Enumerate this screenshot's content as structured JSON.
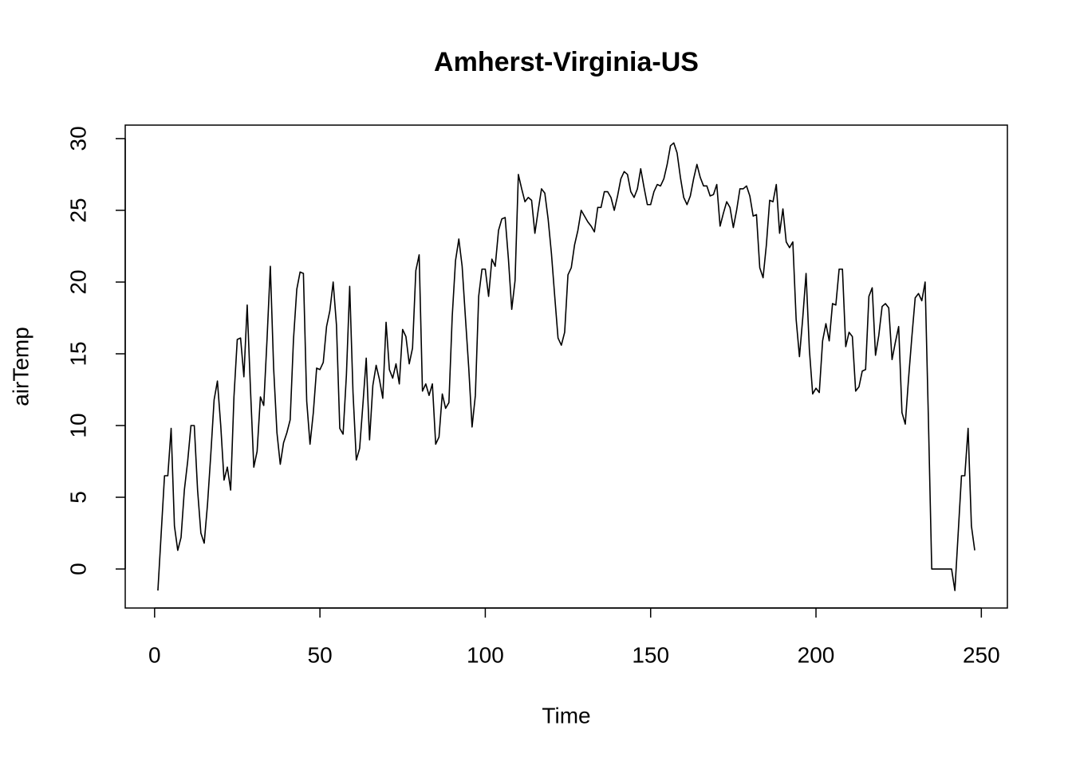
{
  "chart_data": {
    "type": "line",
    "title": "Amherst-Virginia-US",
    "x_label": "Time",
    "y_label": "airTemp",
    "x": [
      1,
      2,
      3,
      4,
      5,
      6,
      7,
      8,
      9,
      10,
      11,
      12,
      13,
      14,
      15,
      16,
      17,
      18,
      19,
      20,
      21,
      22,
      23,
      24,
      25,
      26,
      27,
      28,
      29,
      30,
      31,
      32,
      33,
      34,
      35,
      36,
      37,
      38,
      39,
      40,
      41,
      42,
      43,
      44,
      45,
      46,
      47,
      48,
      49,
      50,
      51,
      52,
      53,
      54,
      55,
      56,
      57,
      58,
      59,
      60,
      61,
      62,
      63,
      64,
      65,
      66,
      67,
      68,
      69,
      70,
      71,
      72,
      73,
      74,
      75,
      76,
      77,
      78,
      79,
      80,
      81,
      82,
      83,
      84,
      85,
      86,
      87,
      88,
      89,
      90,
      91,
      92,
      93,
      94,
      95,
      96,
      97,
      98,
      99,
      100,
      101,
      102,
      103,
      104,
      105,
      106,
      107,
      108,
      109,
      110,
      111,
      112,
      113,
      114,
      115,
      116,
      117,
      118,
      119,
      120,
      121,
      122,
      123,
      124,
      125,
      126,
      127,
      128,
      129,
      130,
      131,
      132,
      133,
      134,
      135,
      136,
      137,
      138,
      139,
      140,
      141,
      142,
      143,
      144,
      145,
      146,
      147,
      148,
      149,
      150,
      151,
      152,
      153,
      154,
      155,
      156,
      157,
      158,
      159,
      160,
      161,
      162,
      163,
      164,
      165,
      166,
      167,
      168,
      169,
      170,
      171,
      172,
      173,
      174,
      175,
      176,
      177,
      178,
      179,
      180,
      181,
      182,
      183,
      184,
      185,
      186,
      187,
      188,
      189,
      190,
      191,
      192,
      193,
      194,
      195,
      196,
      197,
      198,
      199,
      200,
      201,
      202,
      203,
      204,
      205,
      206,
      207,
      208,
      209,
      210,
      211,
      212,
      213,
      214,
      215,
      216,
      217,
      218,
      219,
      220,
      221,
      222,
      223,
      224,
      225,
      226,
      227,
      228,
      229,
      230,
      231,
      232,
      233,
      234,
      235,
      236,
      237,
      238,
      239,
      240,
      241,
      242,
      243,
      244,
      245,
      246,
      247,
      248
    ],
    "series": [
      {
        "name": "airTemp",
        "color": "#000000",
        "values": [
          -1.5,
          2.5,
          6.5,
          6.5,
          9.8,
          3,
          1.3,
          2.2,
          5.5,
          7.5,
          10,
          10,
          5.5,
          2.5,
          1.8,
          4.5,
          8,
          11.8,
          13.1,
          10,
          6.2,
          7.1,
          5.5,
          12,
          16,
          16.1,
          13.4,
          18.4,
          12.5,
          7.1,
          8.2,
          12,
          11.4,
          16,
          21.1,
          14,
          9.5,
          7.3,
          8.8,
          9.5,
          10.4,
          16,
          19.5,
          20.7,
          20.6,
          11.7,
          8.7,
          10.9,
          14,
          13.9,
          14.4,
          16.9,
          18,
          20,
          17,
          9.8,
          9.4,
          13.5,
          19.7,
          12.3,
          7.6,
          8.4,
          11.5,
          14.7,
          9,
          12.8,
          14.2,
          13.2,
          11.9,
          17.2,
          13.9,
          13.3,
          14.3,
          12.9,
          16.7,
          16.2,
          14.3,
          15.4,
          20.8,
          21.9,
          12.4,
          12.9,
          12.1,
          12.9,
          8.7,
          9.2,
          12.2,
          11.2,
          11.6,
          17.6,
          21.5,
          23,
          21.1,
          17.5,
          14,
          9.9,
          12.1,
          19,
          20.9,
          20.9,
          19,
          21.6,
          21.1,
          23.6,
          24.4,
          24.5,
          21.6,
          18.1,
          20.1,
          27.5,
          26.5,
          25.6,
          25.9,
          25.7,
          23.4,
          25,
          26.5,
          26.2,
          24.4,
          22,
          19,
          16.1,
          15.6,
          16.5,
          20.5,
          21,
          22.6,
          23.6,
          25,
          24.6,
          24.2,
          23.9,
          23.5,
          25.2,
          25.2,
          26.3,
          26.3,
          25.9,
          25,
          26,
          27.2,
          27.7,
          27.5,
          26.3,
          25.9,
          26.5,
          27.9,
          26.6,
          25.4,
          25.4,
          26.3,
          26.8,
          26.7,
          27.2,
          28.2,
          29.5,
          29.7,
          29,
          27.3,
          25.9,
          25.4,
          26,
          27.2,
          28.2,
          27.3,
          26.7,
          26.7,
          26,
          26.1,
          26.8,
          23.9,
          24.8,
          25.6,
          25.2,
          23.8,
          25,
          26.5,
          26.5,
          26.7,
          26,
          24.6,
          24.7,
          21,
          20.3,
          22.6,
          25.7,
          25.6,
          26.8,
          23.4,
          25.1,
          22.8,
          22.4,
          22.8,
          17.4,
          14.8,
          17.5,
          20.6,
          15.3,
          12.2,
          12.6,
          12.3,
          15.9,
          17.1,
          15.9,
          18.5,
          18.4,
          20.9,
          20.9,
          15.5,
          16.5,
          16.2,
          12.4,
          12.7,
          13.8,
          13.9,
          19,
          19.6,
          14.9,
          16.3,
          18.3,
          18.5,
          18.2,
          14.6,
          15.8,
          16.9,
          10.9,
          10.1,
          13.3,
          16.2,
          18.9,
          19.2,
          18.7,
          20,
          10.4,
          0,
          0,
          0,
          0,
          0,
          0,
          0,
          -1.5,
          2.5,
          6.5,
          6.5,
          9.8,
          3,
          1.3
        ]
      }
    ],
    "xlim": [
      -8.88,
      257.88
    ],
    "xticks": [
      0,
      50,
      100,
      150,
      200,
      250
    ],
    "ylim": [
      -2.72,
      30.94
    ],
    "yticks": [
      0,
      5,
      10,
      15,
      20,
      25,
      30
    ]
  }
}
